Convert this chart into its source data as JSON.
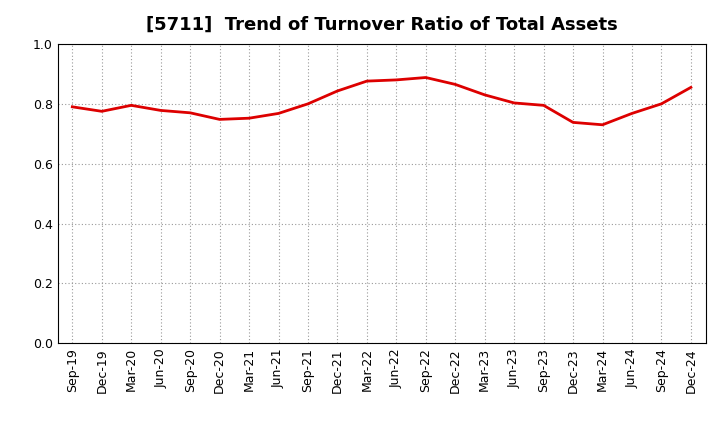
{
  "title": "[5711]  Trend of Turnover Ratio of Total Assets",
  "x_labels": [
    "Sep-19",
    "Dec-19",
    "Mar-20",
    "Jun-20",
    "Sep-20",
    "Dec-20",
    "Mar-21",
    "Jun-21",
    "Sep-21",
    "Dec-21",
    "Mar-22",
    "Jun-22",
    "Sep-22",
    "Dec-22",
    "Mar-23",
    "Jun-23",
    "Sep-23",
    "Dec-23",
    "Mar-24",
    "Jun-24",
    "Sep-24",
    "Dec-24"
  ],
  "y_values": [
    0.79,
    0.775,
    0.795,
    0.778,
    0.77,
    0.748,
    0.752,
    0.768,
    0.8,
    0.843,
    0.876,
    0.88,
    0.888,
    0.865,
    0.83,
    0.803,
    0.795,
    0.738,
    0.73,
    0.768,
    0.8,
    0.855
  ],
  "line_color": "#dd0000",
  "line_width": 2.0,
  "ylim": [
    0.0,
    1.0
  ],
  "yticks": [
    0.0,
    0.2,
    0.4,
    0.6,
    0.8,
    1.0
  ],
  "grid_color": "#999999",
  "bg_color": "#ffffff",
  "title_fontsize": 13,
  "tick_fontsize": 9
}
